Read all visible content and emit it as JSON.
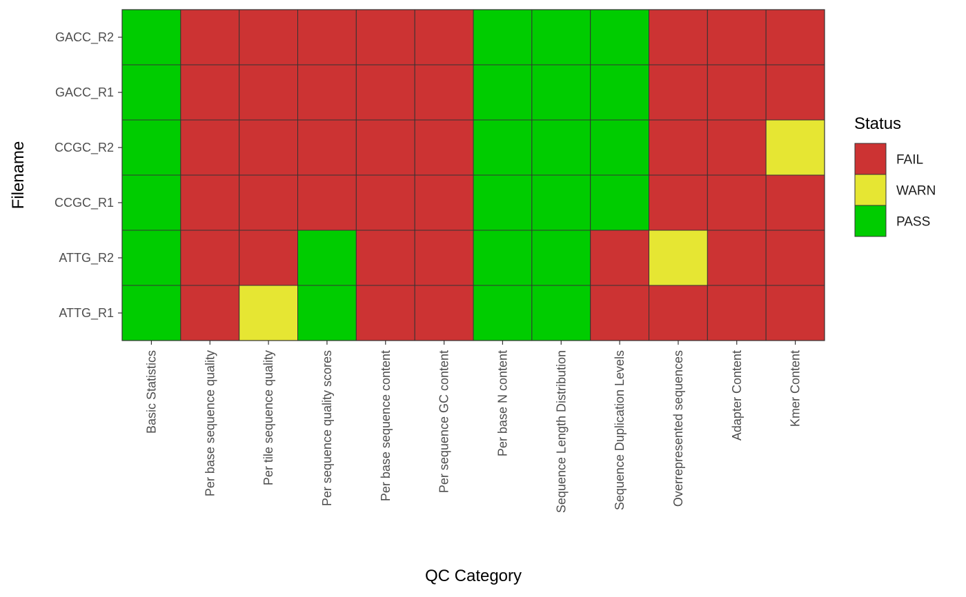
{
  "chart_data": {
    "type": "heatmap",
    "xlabel": "QC Category",
    "ylabel": "Filename",
    "x_categories": [
      "Basic Statistics",
      "Per base sequence quality",
      "Per tile sequence quality",
      "Per sequence quality scores",
      "Per base sequence content",
      "Per sequence GC content",
      "Per base N content",
      "Sequence Length Distribution",
      "Sequence Duplication Levels",
      "Overrepresented sequences",
      "Adapter Content",
      "Kmer Content"
    ],
    "y_categories": [
      "GACC_R2",
      "GACC_R1",
      "CCGC_R2",
      "CCGC_R1",
      "ATTG_R2",
      "ATTG_R1"
    ],
    "values": [
      [
        "PASS",
        "FAIL",
        "FAIL",
        "FAIL",
        "FAIL",
        "FAIL",
        "PASS",
        "PASS",
        "PASS",
        "FAIL",
        "FAIL",
        "FAIL"
      ],
      [
        "PASS",
        "FAIL",
        "FAIL",
        "FAIL",
        "FAIL",
        "FAIL",
        "PASS",
        "PASS",
        "PASS",
        "FAIL",
        "FAIL",
        "FAIL"
      ],
      [
        "PASS",
        "FAIL",
        "FAIL",
        "FAIL",
        "FAIL",
        "FAIL",
        "PASS",
        "PASS",
        "PASS",
        "FAIL",
        "FAIL",
        "WARN"
      ],
      [
        "PASS",
        "FAIL",
        "FAIL",
        "FAIL",
        "FAIL",
        "FAIL",
        "PASS",
        "PASS",
        "PASS",
        "FAIL",
        "FAIL",
        "FAIL"
      ],
      [
        "PASS",
        "FAIL",
        "FAIL",
        "PASS",
        "FAIL",
        "FAIL",
        "PASS",
        "PASS",
        "FAIL",
        "WARN",
        "FAIL",
        "FAIL"
      ],
      [
        "PASS",
        "FAIL",
        "WARN",
        "PASS",
        "FAIL",
        "FAIL",
        "PASS",
        "PASS",
        "FAIL",
        "FAIL",
        "FAIL",
        "FAIL"
      ]
    ],
    "legend": {
      "title": "Status",
      "position": "right",
      "entries": [
        {
          "label": "FAIL",
          "color": "#cc3333"
        },
        {
          "label": "WARN",
          "color": "#e6e633"
        },
        {
          "label": "PASS",
          "color": "#00cc00"
        }
      ]
    },
    "grid": false,
    "border_color": "#333333"
  }
}
